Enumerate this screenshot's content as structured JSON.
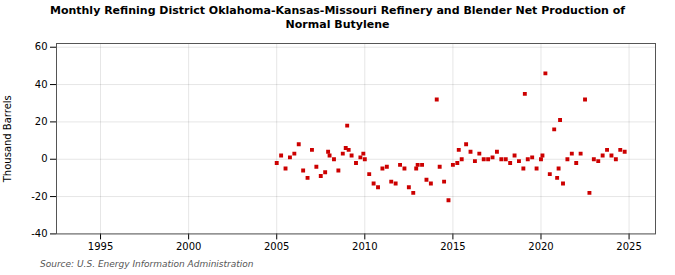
{
  "chart_data": {
    "type": "scatter",
    "title": "Monthly Refining District Oklahoma-Kansas-Missouri Refinery and Blender Net Production of\nNormal Butylene",
    "ylabel": "Thousand Barrels",
    "source": "Source: U.S. Energy Information Administration",
    "xlim": [
      1992.5,
      2026.5
    ],
    "xticks": [
      1995,
      2000,
      2005,
      2010,
      2015,
      2020,
      2025
    ],
    "ylim": [
      -40,
      62
    ],
    "yticks": [
      -40,
      -20,
      0,
      20,
      40,
      60
    ],
    "grid": true,
    "color": "#cc0000",
    "marker": "square",
    "x": [
      2005.0,
      2005.25,
      2005.5,
      2005.75,
      2006.0,
      2006.25,
      2006.5,
      2006.75,
      2007.0,
      2007.25,
      2007.5,
      2007.75,
      2007.917,
      2008.0,
      2008.25,
      2008.5,
      2008.75,
      2008.917,
      2009.0,
      2009.083,
      2009.25,
      2009.5,
      2009.75,
      2009.917,
      2010.0,
      2010.25,
      2010.5,
      2010.75,
      2011.0,
      2011.25,
      2011.5,
      2011.75,
      2012.0,
      2012.25,
      2012.5,
      2012.75,
      2012.917,
      2013.0,
      2013.25,
      2013.5,
      2013.75,
      2014.083,
      2014.25,
      2014.5,
      2014.75,
      2015.0,
      2015.25,
      2015.5,
      2015.75,
      2015.333,
      2016.0,
      2016.25,
      2016.5,
      2016.75,
      2017.0,
      2017.25,
      2017.5,
      2017.75,
      2018.0,
      2018.25,
      2018.5,
      2018.75,
      2019.0,
      2019.083,
      2019.25,
      2019.5,
      2019.75,
      2020.0,
      2020.083,
      2020.25,
      2020.5,
      2020.75,
      2020.917,
      2021.0,
      2021.083,
      2021.25,
      2021.5,
      2021.75,
      2022.0,
      2022.25,
      2022.5,
      2022.75,
      2023.0,
      2023.25,
      2023.5,
      2023.75,
      2024.0,
      2024.25,
      2024.5,
      2024.75
    ],
    "values": [
      -2,
      2,
      -5,
      1,
      3,
      8,
      -6,
      -10,
      5,
      -4,
      -9,
      -7,
      4,
      2,
      0,
      -6,
      3,
      6,
      18,
      5,
      2,
      -2,
      1,
      3,
      0,
      -8,
      -13,
      -15,
      -5,
      -4,
      -12,
      -13,
      -3,
      -5,
      -15,
      -18,
      -5,
      -3,
      -3,
      -11,
      -13,
      32,
      -4,
      -12,
      -22,
      -3,
      -2,
      0,
      8,
      5,
      4,
      -1,
      3,
      0,
      0,
      1,
      4,
      0,
      0,
      -2,
      2,
      -1,
      -5,
      35,
      0,
      1,
      -5,
      0,
      2,
      46,
      -8,
      16,
      -10,
      -5,
      21,
      -13,
      0,
      3,
      -2,
      3,
      32,
      -18,
      0,
      -1,
      2,
      5,
      2,
      0,
      5,
      4
    ]
  }
}
